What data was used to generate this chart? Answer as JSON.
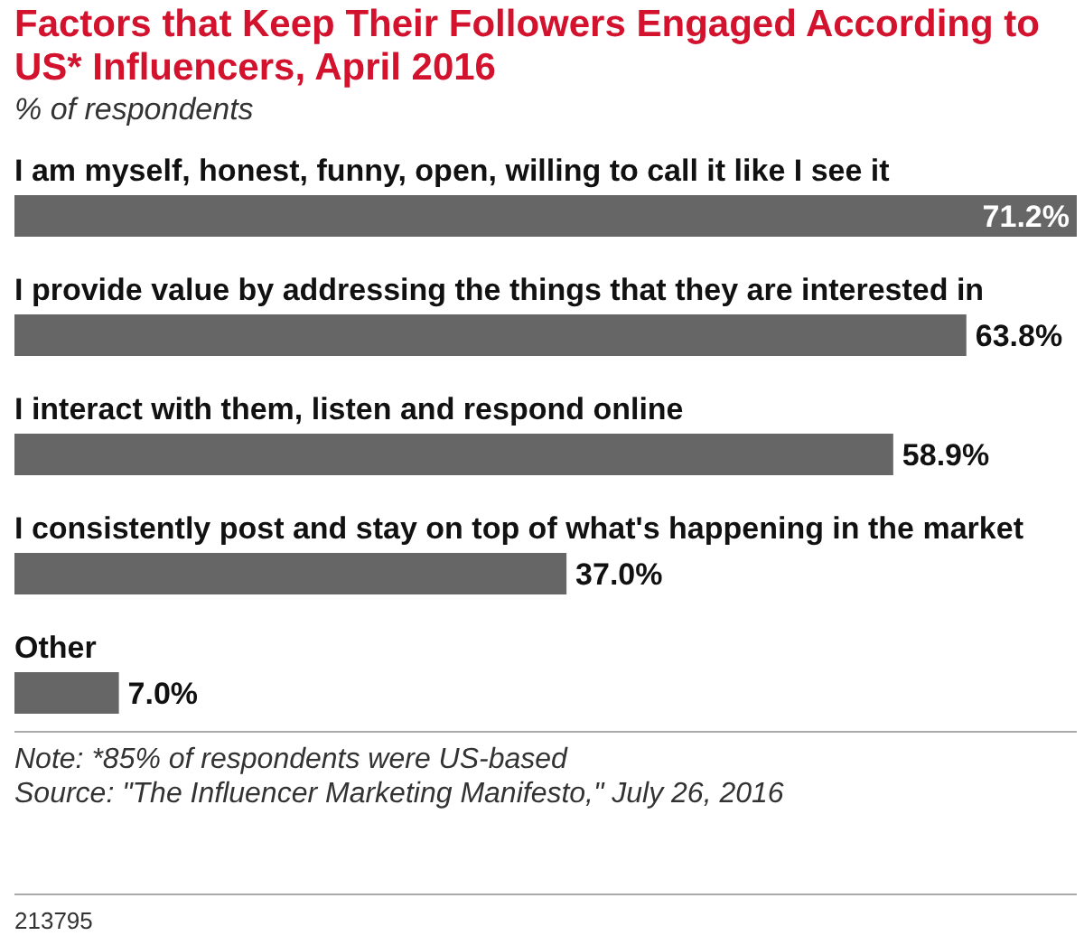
{
  "chart_data": {
    "type": "bar",
    "orientation": "horizontal",
    "title": "Factors that Keep Their Followers Engaged According to US* Influencers, April 2016",
    "subtitle": "% of respondents",
    "categories": [
      "I am myself, honest, funny, open, willing to call it like I see it",
      "I provide value by addressing the things that they are interested in",
      "I interact with them, listen and respond online",
      "I consistently post and stay on top of what's happening in the market",
      "Other"
    ],
    "values": [
      71.2,
      63.8,
      58.9,
      37.0,
      7.0
    ],
    "value_labels": [
      "71.2%",
      "63.8%",
      "58.9%",
      "37.0%",
      "7.0%"
    ],
    "color": "#666666",
    "annotations": [
      "Note: *85% of respondents were US-based",
      "Source: \"The Influencer Marketing Manifesto,\" July 26, 2016",
      "213795"
    ]
  }
}
